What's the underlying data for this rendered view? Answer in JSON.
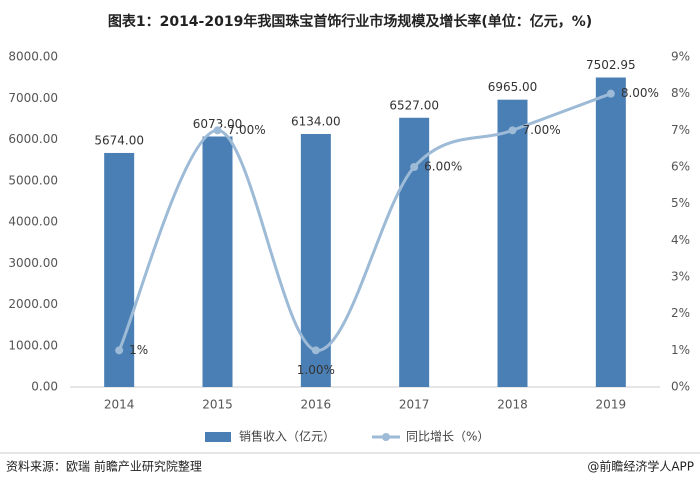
{
  "chart_data": {
    "type": "bar",
    "title": "图表1：2014-2019年我国珠宝首饰行业市场规模及增长率(单位：亿元，%)",
    "categories": [
      "2014",
      "2015",
      "2016",
      "2017",
      "2018",
      "2019"
    ],
    "series": [
      {
        "name": "销售收入（亿元）",
        "type": "bar",
        "color": "#4a7fb5",
        "values": [
          5674,
          6073,
          6134,
          6527,
          6965,
          7502.95
        ],
        "value_labels": [
          "5674.00",
          "6073.00",
          "6134.00",
          "6527.00",
          "6965.00",
          "7502.95"
        ]
      },
      {
        "name": "同比增长（%）",
        "type": "line",
        "axis": "y2",
        "color": "#9dbad6",
        "values": [
          1,
          7,
          1,
          6,
          7,
          8
        ],
        "value_labels": [
          "1%",
          "7.00%",
          "1.00%",
          "6.00%",
          "7.00%",
          "8.00%"
        ]
      }
    ],
    "ylim": [
      0,
      8000
    ],
    "yticks": [
      {
        "value": 0,
        "label": "0.00"
      },
      {
        "value": 1000,
        "label": "1000.00"
      },
      {
        "value": 2000,
        "label": "2000.00"
      },
      {
        "value": 3000,
        "label": "3000.00"
      },
      {
        "value": 4000,
        "label": "4000.00"
      },
      {
        "value": 5000,
        "label": "5000.00"
      },
      {
        "value": 6000,
        "label": "6000.00"
      },
      {
        "value": 7000,
        "label": "7000.00"
      },
      {
        "value": 8000,
        "label": "8000.00"
      }
    ],
    "y2lim": [
      0,
      9
    ],
    "y2ticks": [
      {
        "value": 0,
        "label": "0%"
      },
      {
        "value": 1,
        "label": "1%"
      },
      {
        "value": 2,
        "label": "2%"
      },
      {
        "value": 3,
        "label": "3%"
      },
      {
        "value": 4,
        "label": "4%"
      },
      {
        "value": 5,
        "label": "5%"
      },
      {
        "value": 6,
        "label": "6%"
      },
      {
        "value": 7,
        "label": "7%"
      },
      {
        "value": 8,
        "label": "8%"
      },
      {
        "value": 9,
        "label": "9%"
      }
    ],
    "legend": "bottom",
    "source": "资料来源：欧瑞 前瞻产业研究院整理",
    "credit": "@前瞻经济学人APP"
  }
}
